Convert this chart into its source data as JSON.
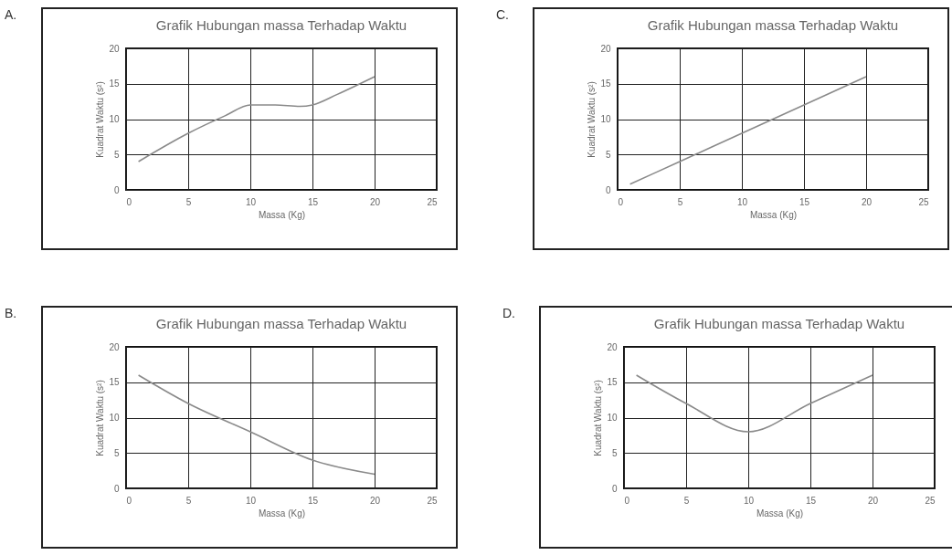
{
  "chart_data": [
    {
      "type": "line",
      "title": "Grafik Hubungan massa Terhadap Waktu",
      "xlabel": "Massa (Kg)",
      "ylabel": "Kuadrat Waktu (s²)",
      "annotations": [
        "A."
      ],
      "x": [
        1,
        5,
        8,
        10,
        12,
        14,
        15,
        17,
        20
      ],
      "series": [
        {
          "color": "#8a8a8a",
          "values": [
            4,
            8,
            10.5,
            12,
            12,
            11.8,
            12,
            13.5,
            16
          ]
        }
      ],
      "xlim": [
        0,
        25
      ],
      "ylim": [
        0,
        20
      ],
      "xticks": [
        0,
        5,
        10,
        15,
        20,
        25
      ],
      "yticks": [
        0,
        5,
        10,
        15,
        20
      ],
      "grid": true
    },
    {
      "type": "line",
      "title": "Grafik Hubungan massa Terhadap Waktu",
      "xlabel": "Massa (Kg)",
      "ylabel": "Kuadrat Waktu (s²)",
      "annotations": [
        "C."
      ],
      "x": [
        1,
        5,
        10,
        15,
        20
      ],
      "series": [
        {
          "color": "#8a8a8a",
          "values": [
            0.8,
            4,
            8,
            12,
            16
          ]
        }
      ],
      "xlim": [
        0,
        25
      ],
      "ylim": [
        0,
        20
      ],
      "xticks": [
        0,
        5,
        10,
        15,
        20,
        25
      ],
      "yticks": [
        0,
        5,
        10,
        15,
        20
      ],
      "grid": true
    },
    {
      "type": "line",
      "title": "Grafik Hubungan massa Terhadap Waktu",
      "xlabel": "Massa (Kg)",
      "ylabel": "Kuadrat Waktu (s²)",
      "annotations": [
        "B."
      ],
      "x": [
        1,
        5,
        10,
        15,
        20
      ],
      "series": [
        {
          "color": "#8a8a8a",
          "values": [
            16,
            12,
            8,
            4,
            2
          ]
        }
      ],
      "xlim": [
        0,
        25
      ],
      "ylim": [
        0,
        20
      ],
      "xticks": [
        0,
        5,
        10,
        15,
        20,
        25
      ],
      "yticks": [
        0,
        5,
        10,
        15,
        20
      ],
      "grid": true
    },
    {
      "type": "line",
      "title": "Grafik Hubungan massa Terhadap Waktu",
      "xlabel": "Massa (Kg)",
      "ylabel": "Kuadrat Waktu (s²)",
      "annotations": [
        "D."
      ],
      "x": [
        1,
        5,
        10,
        15,
        20
      ],
      "series": [
        {
          "color": "#8a8a8a",
          "values": [
            16,
            12,
            8,
            12,
            16
          ]
        }
      ],
      "xlim": [
        0,
        25
      ],
      "ylim": [
        0,
        20
      ],
      "xticks": [
        0,
        5,
        10,
        15,
        20,
        25
      ],
      "yticks": [
        0,
        5,
        10,
        15,
        20
      ],
      "grid": true
    }
  ]
}
